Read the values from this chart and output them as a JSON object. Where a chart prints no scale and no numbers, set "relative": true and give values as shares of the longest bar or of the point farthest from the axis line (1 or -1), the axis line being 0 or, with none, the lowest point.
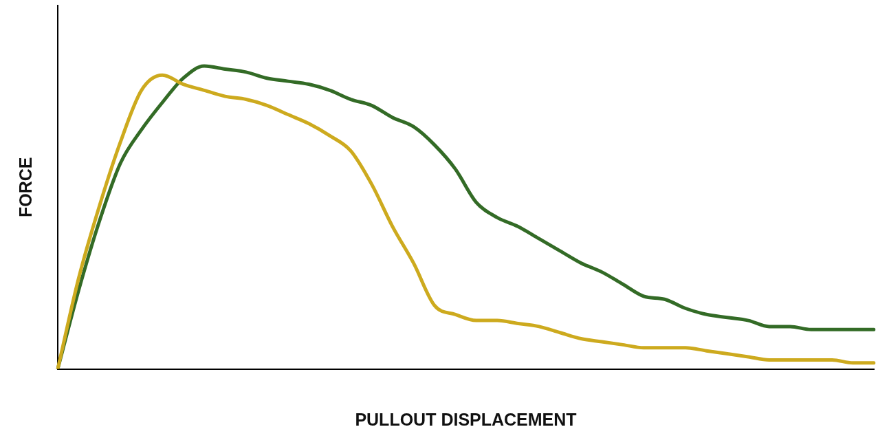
{
  "chart_data": {
    "type": "line",
    "xlabel": "PULLOUT DISPLACEMENT",
    "ylabel": "FORCE",
    "relative": true,
    "grid": false,
    "legend": false,
    "marker": "none",
    "line_style": "solid",
    "categories": [
      null,
      null,
      null,
      null,
      null,
      null,
      null,
      null,
      null,
      null,
      null,
      null,
      null,
      null,
      null,
      null,
      null,
      null,
      null,
      null,
      null,
      null,
      null,
      null,
      null,
      null,
      null,
      null,
      null,
      null,
      null,
      null,
      null,
      null,
      null,
      null,
      null,
      null,
      null,
      null
    ],
    "series": [
      {
        "color": "#cdaa1e",
        "values": [
          0,
          0.3,
          0.54,
          0.75,
          0.92,
          0.97,
          0.94,
          0.92,
          0.9,
          0.89,
          0.87,
          0.84,
          0.81,
          0.77,
          0.72,
          0.61,
          0.47,
          0.35,
          0.21,
          0.18,
          0.16,
          0.16,
          0.15,
          0.14,
          0.12,
          0.1,
          0.09,
          0.08,
          0.07,
          0.07,
          0.07,
          0.06,
          0.05,
          0.04,
          0.03,
          0.03,
          0.03,
          0.03,
          0.02,
          0.02
        ]
      },
      {
        "color": "#336b26",
        "values": [
          0,
          0.26,
          0.49,
          0.68,
          0.79,
          0.88,
          0.96,
          1.0,
          0.99,
          0.98,
          0.96,
          0.95,
          0.94,
          0.92,
          0.89,
          0.87,
          0.83,
          0.8,
          0.74,
          0.66,
          0.55,
          0.5,
          0.47,
          0.43,
          0.39,
          0.35,
          0.32,
          0.28,
          0.24,
          0.23,
          0.2,
          0.18,
          0.17,
          0.16,
          0.14,
          0.14,
          0.13,
          0.13,
          0.13,
          0.13
        ]
      }
    ]
  }
}
